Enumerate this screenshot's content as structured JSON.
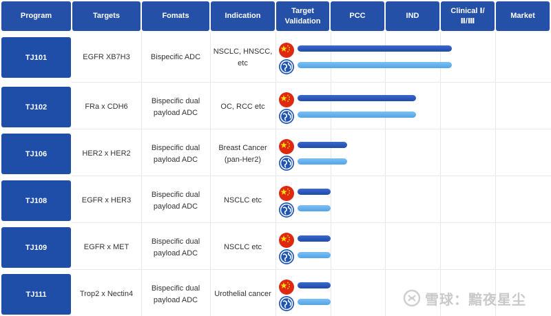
{
  "headers": {
    "program": "Program",
    "targets": "Targets",
    "formats": "Fomats",
    "indication": "Indication",
    "target_validation_line1": "Target",
    "target_validation_line2": "Validation",
    "pcc": "PCC",
    "ind": "IND",
    "clinical_line1": "Clinical Ⅰ/",
    "clinical_line2": "Ⅱ/Ⅲ",
    "market": "Market"
  },
  "rows": [
    {
      "program": "TJ101",
      "targets": "EGFR XB7H3",
      "formats_line1": "Bispecific ADC",
      "formats_line2": "",
      "indication_line1": "NSCLC, HNSCC,",
      "indication_line2": "etc",
      "china_progress": 0.56,
      "global_progress": 0.56
    },
    {
      "program": "TJ102",
      "targets": "FRa x CDH6",
      "formats_line1": "Bispecific dual",
      "formats_line2": "payload ADC",
      "indication_line1": "OC, RCC etc",
      "indication_line2": "",
      "china_progress": 0.43,
      "global_progress": 0.43
    },
    {
      "program": "TJ106",
      "targets": "HER2 x HER2",
      "formats_line1": "Bispecific dual",
      "formats_line2": "payload ADC",
      "indication_line1": "Breast Cancer",
      "indication_line2": "(pan-Her2)",
      "china_progress": 0.18,
      "global_progress": 0.18
    },
    {
      "program": "TJ108",
      "targets": "EGFR x HER3",
      "formats_line1": "Bispecific dual",
      "formats_line2": "payload ADC",
      "indication_line1": "NSCLC etc",
      "indication_line2": "",
      "china_progress": 0.12,
      "global_progress": 0.12
    },
    {
      "program": "TJ109",
      "targets": "EGFR x MET",
      "formats_line1": "Bispecific dual",
      "formats_line2": "payload ADC",
      "indication_line1": "NSCLC etc",
      "indication_line2": "",
      "china_progress": 0.12,
      "global_progress": 0.12
    },
    {
      "program": "TJ111",
      "targets": "Trop2 x Nectin4",
      "formats_line1": "Bispecific dual",
      "formats_line2": "payload ADC",
      "indication_line1": "Urothelial cancer",
      "indication_line2": "",
      "china_progress": 0.12,
      "global_progress": 0.12
    }
  ],
  "flags": {
    "china": "china-flag-icon",
    "global": "globe-icon"
  },
  "colors": {
    "header_bg": "#2450a8",
    "program_bg": "#1f4ea8",
    "china_bar": "#1f4ca8",
    "global_bar": "#53a4e6",
    "china_flag": "#de2910"
  },
  "watermark": {
    "text": "雪球：黯夜星尘"
  }
}
